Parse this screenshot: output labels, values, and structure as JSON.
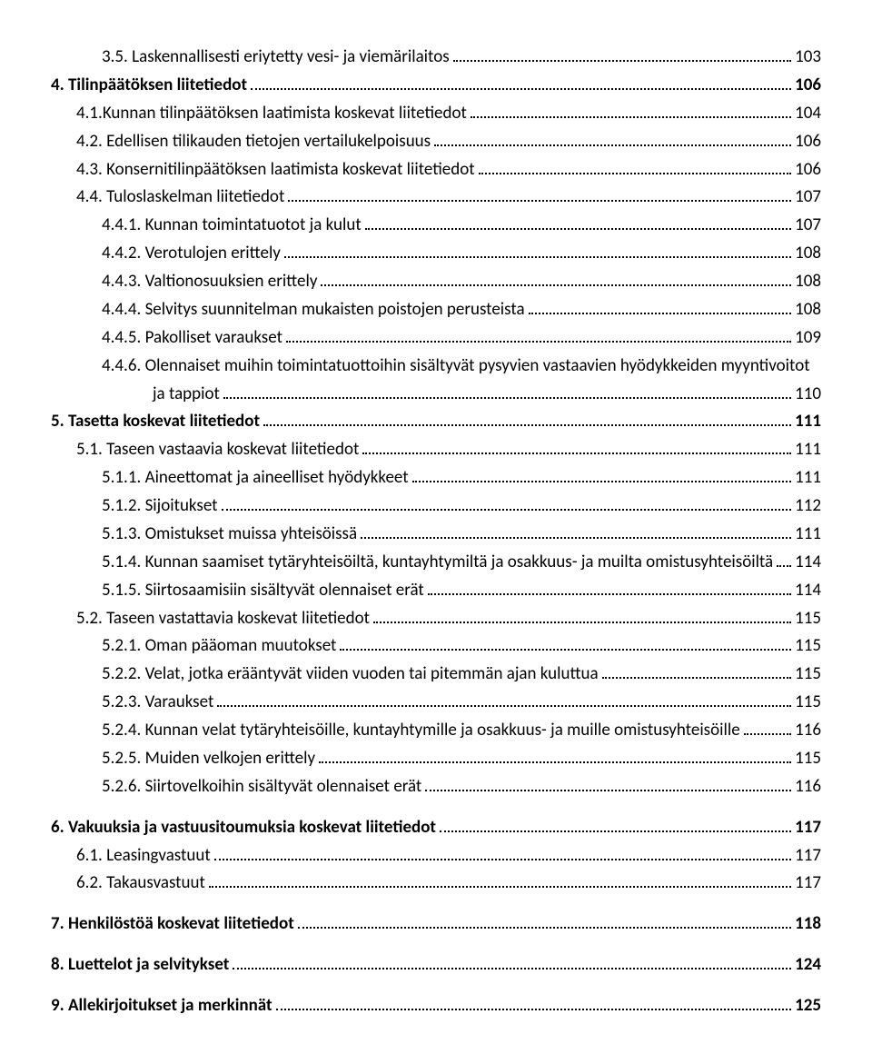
{
  "toc": [
    {
      "level": 2,
      "bold": false,
      "gap": false,
      "label": "3.5. Laskennallisesti eriytetty vesi- ja viemärilaitos",
      "page": "103"
    },
    {
      "level": 0,
      "bold": true,
      "gap": false,
      "label": "4. Tilinpäätöksen liitetiedot",
      "page": "106"
    },
    {
      "level": 1,
      "bold": false,
      "gap": false,
      "label": "4.1.Kunnan tilinpäätöksen laatimista koskevat liitetiedot",
      "page": "104"
    },
    {
      "level": 1,
      "bold": false,
      "gap": false,
      "label": "4.2. Edellisen tilikauden tietojen vertailukelpoisuus",
      "page": "106"
    },
    {
      "level": 1,
      "bold": false,
      "gap": false,
      "label": "4.3. Konsernitilinpäätöksen laatimista koskevat liitetiedot",
      "page": "106"
    },
    {
      "level": 1,
      "bold": false,
      "gap": false,
      "label": "4.4. Tuloslaskelman liitetiedot",
      "page": "107"
    },
    {
      "level": 2,
      "bold": false,
      "gap": false,
      "label": "4.4.1. Kunnan toimintatuotot ja kulut",
      "page": "107"
    },
    {
      "level": 2,
      "bold": false,
      "gap": false,
      "label": "4.4.2. Verotulojen erittely",
      "page": "108"
    },
    {
      "level": 2,
      "bold": false,
      "gap": false,
      "label": "4.4.3. Valtionosuuksien erittely",
      "page": "108"
    },
    {
      "level": 2,
      "bold": false,
      "gap": false,
      "label": "4.4.4. Selvitys suunnitelman mukaisten poistojen perusteista",
      "page": "108"
    },
    {
      "level": 2,
      "bold": false,
      "gap": false,
      "label": "4.4.5. Pakolliset varaukset",
      "page": "109"
    },
    {
      "level": 2,
      "bold": false,
      "gap": false,
      "wrap": true,
      "labelA": "4.4.6. Olennaiset muihin toimintatuottoihin sisältyvät pysyvien vastaavien hyödykkeiden myyntivoitot",
      "labelB": "ja tappiot",
      "page": "110"
    },
    {
      "level": 0,
      "bold": true,
      "gap": false,
      "label": "5. Tasetta koskevat liitetiedot",
      "page": "111"
    },
    {
      "level": 1,
      "bold": false,
      "gap": false,
      "label": "5.1. Taseen vastaavia koskevat liitetiedot",
      "page": "111"
    },
    {
      "level": 2,
      "bold": false,
      "gap": false,
      "label": "5.1.1. Aineettomat ja aineelliset hyödykkeet",
      "page": "111"
    },
    {
      "level": 2,
      "bold": false,
      "gap": false,
      "label": "5.1.2. Sijoitukset",
      "page": "112"
    },
    {
      "level": 2,
      "bold": false,
      "gap": false,
      "label": "5.1.3. Omistukset muissa yhteisöissä",
      "page": "111"
    },
    {
      "level": 2,
      "bold": false,
      "gap": false,
      "label": "5.1.4. Kunnan saamiset tytäryhteisöiltä, kuntayhtymiltä ja osakkuus- ja muilta omistusyhteisöiltä",
      "page": "114"
    },
    {
      "level": 2,
      "bold": false,
      "gap": false,
      "label": "5.1.5. Siirtosaamisiin sisältyvät olennaiset erät",
      "page": "114"
    },
    {
      "level": 1,
      "bold": false,
      "gap": false,
      "label": "5.2. Taseen vastattavia koskevat liitetiedot",
      "page": "115"
    },
    {
      "level": 2,
      "bold": false,
      "gap": false,
      "label": "5.2.1. Oman pääoman muutokset",
      "page": "115"
    },
    {
      "level": 2,
      "bold": false,
      "gap": false,
      "label": "5.2.2. Velat, jotka erääntyvät viiden vuoden tai pitemmän ajan kuluttua",
      "page": "115"
    },
    {
      "level": 2,
      "bold": false,
      "gap": false,
      "label": "5.2.3. Varaukset",
      "page": "115"
    },
    {
      "level": 2,
      "bold": false,
      "gap": false,
      "label": "5.2.4. Kunnan velat tytäryhteisöille, kuntayhtymille ja osakkuus- ja muille omistusyhteisöille",
      "page": "116"
    },
    {
      "level": 2,
      "bold": false,
      "gap": false,
      "label": "5.2.5. Muiden velkojen erittely",
      "page": "115"
    },
    {
      "level": 2,
      "bold": false,
      "gap": false,
      "label": "5.2.6. Siirtovelkoihin sisältyvät olennaiset erät",
      "page": "116"
    },
    {
      "level": 0,
      "bold": true,
      "gap": true,
      "label": "6. Vakuuksia ja vastuusitoumuksia koskevat liitetiedot",
      "page": "117"
    },
    {
      "level": 1,
      "bold": false,
      "gap": false,
      "label": "6.1. Leasingvastuut",
      "page": "117"
    },
    {
      "level": 1,
      "bold": false,
      "gap": false,
      "label": "6.2. Takausvastuut",
      "page": "117"
    },
    {
      "level": 0,
      "bold": true,
      "gap": true,
      "label": "7. Henkilöstöä koskevat liitetiedot",
      "page": "118"
    },
    {
      "level": 0,
      "bold": true,
      "gap": true,
      "label": "8. Luettelot ja selvitykset",
      "page": "124"
    },
    {
      "level": 0,
      "bold": true,
      "gap": true,
      "label": "9. Allekirjoitukset ja merkinnät",
      "page": "125"
    }
  ]
}
